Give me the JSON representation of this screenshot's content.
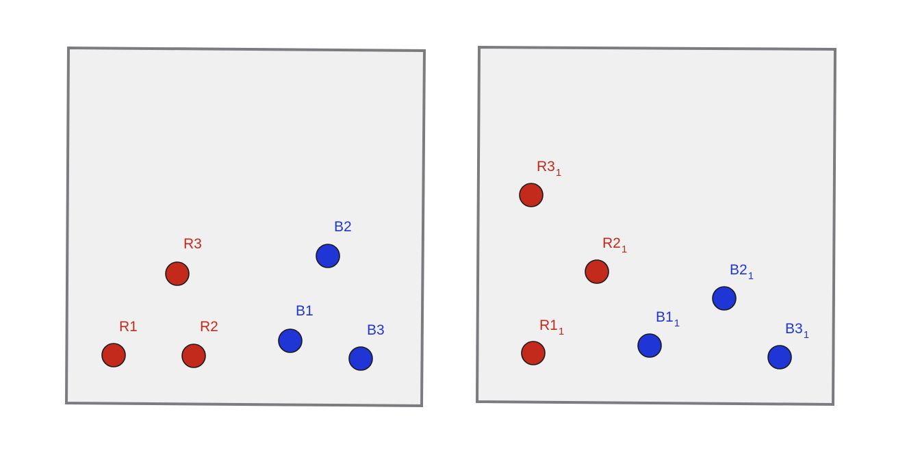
{
  "colors": {
    "background": "#ffffff",
    "panel_fill": "#f0f0f0",
    "panel_border": "#7b7b80",
    "red": "#c42a1b",
    "blue": "#1f35d6"
  },
  "panels": [
    {
      "name": "panel-left",
      "points": [
        {
          "name": "r1",
          "color": "red",
          "label": "R1",
          "subscript": ""
        },
        {
          "name": "r2",
          "color": "red",
          "label": "R2",
          "subscript": ""
        },
        {
          "name": "r3",
          "color": "red",
          "label": "R3",
          "subscript": ""
        },
        {
          "name": "b1",
          "color": "blue",
          "label": "B1",
          "subscript": ""
        },
        {
          "name": "b2",
          "color": "blue",
          "label": "B2",
          "subscript": ""
        },
        {
          "name": "b3",
          "color": "blue",
          "label": "B3",
          "subscript": ""
        }
      ]
    },
    {
      "name": "panel-right",
      "points": [
        {
          "name": "r1",
          "color": "red",
          "label": "R1",
          "subscript": "1"
        },
        {
          "name": "r2",
          "color": "red",
          "label": "R2",
          "subscript": "1"
        },
        {
          "name": "r3",
          "color": "red",
          "label": "R3",
          "subscript": "1"
        },
        {
          "name": "b1",
          "color": "blue",
          "label": "B1",
          "subscript": "1"
        },
        {
          "name": "b2",
          "color": "blue",
          "label": "B2",
          "subscript": "1"
        },
        {
          "name": "b3",
          "color": "blue",
          "label": "B3",
          "subscript": "1"
        }
      ]
    }
  ]
}
